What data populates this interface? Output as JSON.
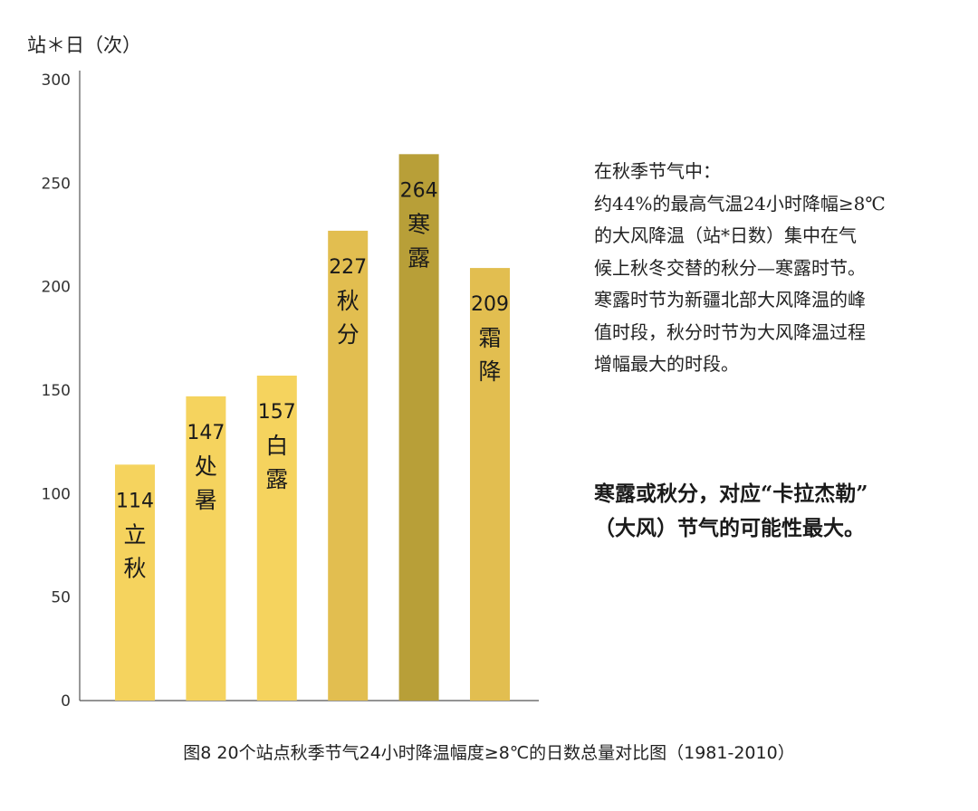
{
  "y_axis_title": "站＊日（次）",
  "side_text": {
    "lines": [
      "在秋季节气中：",
      "约44%的最高气温24小时降幅≥8℃",
      "的大风降温（站*日数）集中在气",
      "候上秋冬交替的秋分—寒露时节。",
      "寒露时节为新疆北部大风降温的峰",
      "值时段，秋分时节为大风降温过程",
      "增幅最大的时段。"
    ]
  },
  "highlight_text": {
    "line1": "寒露或秋分，对应“卡拉杰勒”",
    "line2": "（大风）节气的可能性最大。"
  },
  "caption": "图8 20个站点秋季节气24小时降温幅度≥8℃的日数总量对比图（1981-2010）",
  "colors": {
    "bar_light": "#F5D35E",
    "bar_mid": "#E2BE50",
    "bar_dark": "#B89F38",
    "axis": "#555555"
  },
  "chart_data": {
    "type": "bar",
    "categories": [
      "立秋",
      "处暑",
      "白露",
      "秋分",
      "寒露",
      "霜降"
    ],
    "values": [
      114,
      147,
      157,
      227,
      264,
      209
    ],
    "bar_colors": [
      "#F5D35E",
      "#F5D35E",
      "#F5D35E",
      "#E2BE50",
      "#B89F38",
      "#E2BE50"
    ],
    "ylabel": "站＊日（次）",
    "ylim": [
      0,
      300
    ],
    "yticks": [
      0,
      50,
      100,
      150,
      200,
      250,
      300
    ],
    "grid": false,
    "legend": "none"
  }
}
